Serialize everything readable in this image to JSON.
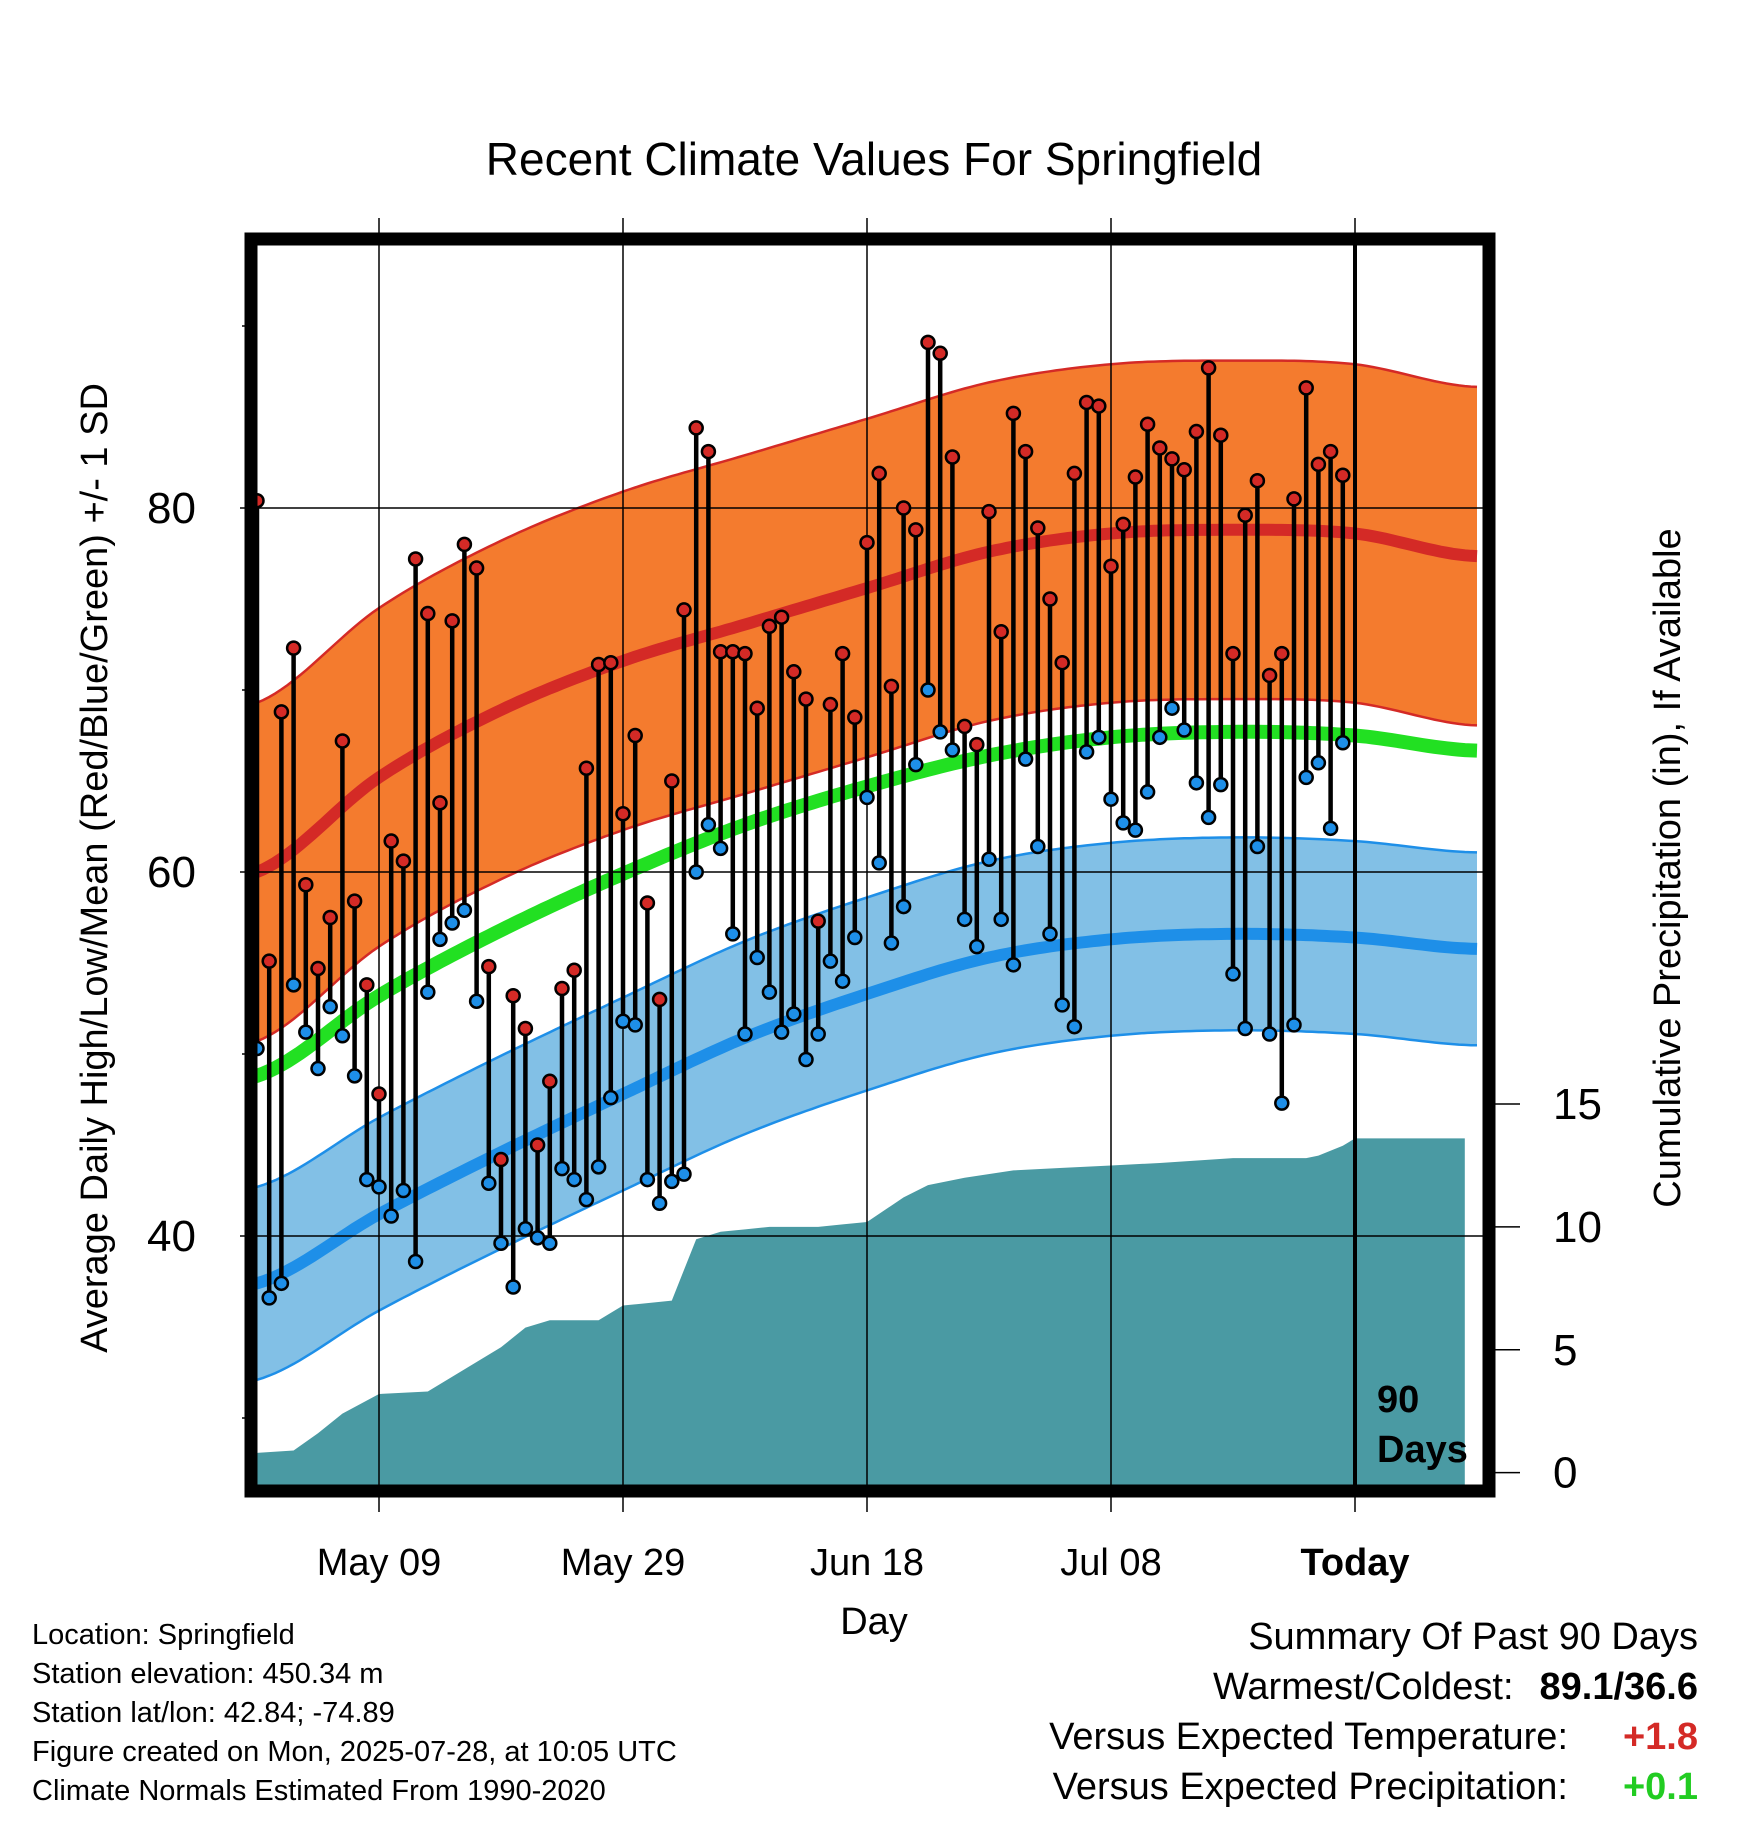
{
  "colors": {
    "high_band": "#f47b2e",
    "high_band_edge": "#d42a26",
    "high_mean": "#d42a26",
    "low_band": "#82c0e6",
    "low_band_edge": "#1e8fe8",
    "low_mean": "#1e8fe8",
    "mean_line": "#22e022",
    "precip_fill": "#4a9aa3",
    "high_dot": "#d42a26",
    "low_dot": "#1e8fe8",
    "departure_temp": "#d42a26",
    "departure_precip": "#22cc22"
  },
  "chart_data": {
    "type": "line",
    "title": "Recent Climate Values For Springfield",
    "xlabel": "Day",
    "ylabel": "Average Daily High/Low/Mean (Red/Blue/Green) +/- 1 SD",
    "y2label": "Cumulative Precipitation (in), If Available",
    "x_ticks": [
      "May 09",
      "May 29",
      "Jun 18",
      "Jul 08",
      "Today"
    ],
    "x_tick_days": [
      10,
      30,
      50,
      70,
      90
    ],
    "xlim": [
      -0.2,
      99.2
    ],
    "ylim": [
      27.5,
      95.5
    ],
    "y_ticks": [
      40,
      60,
      80
    ],
    "y_minor_ticks": [
      30,
      50,
      70,
      90
    ],
    "y2_ticks": [
      0,
      5,
      10,
      15
    ],
    "y2_scale": {
      "zero_at_temp": 27,
      "units_per_inch": 1.35
    },
    "today_marker": {
      "day": 90,
      "label_line1": "90",
      "label_line2": "Days"
    },
    "grid": true,
    "normals": {
      "x": [
        0,
        10,
        20,
        30,
        40,
        50,
        60,
        70,
        80,
        90,
        99
      ],
      "high_mean": [
        60,
        65.2,
        68.9,
        71.6,
        73.6,
        75.6,
        77.6,
        78.6,
        78.8,
        78.6,
        77.4
      ],
      "high_sd": 9.3,
      "low_mean": [
        37.4,
        41.2,
        44.6,
        47.8,
        50.9,
        53.3,
        55.3,
        56.3,
        56.6,
        56.4,
        55.8
      ],
      "low_sd": 5.3,
      "mean_line": [
        48.8,
        53.2,
        56.8,
        59.9,
        62.6,
        64.7,
        66.4,
        67.4,
        67.7,
        67.5,
        66.7
      ]
    },
    "series": [
      {
        "name": "High",
        "values": [
          80.4,
          55.1,
          68.8,
          72.3,
          59.3,
          54.7,
          57.5,
          67.2,
          58.4,
          53.8,
          47.8,
          61.7,
          60.6,
          77.2,
          74.2,
          63.8,
          73.8,
          78,
          76.7,
          54.8,
          44.2,
          53.2,
          51.4,
          45,
          48.5,
          53.6,
          54.6,
          65.7,
          71.4,
          71.5,
          63.2,
          67.5,
          58.3,
          53,
          65,
          74.4,
          84.4,
          83.1,
          72.1,
          72.1,
          72,
          69,
          73.5,
          74,
          71,
          69.5,
          57.3,
          69.2,
          72,
          68.5,
          78.1,
          81.9,
          70.2,
          80,
          78.8,
          89.1,
          88.5,
          82.8,
          68,
          67,
          79.8,
          73.2,
          85.2,
          83.1,
          78.9,
          75,
          71.5,
          81.9,
          85.8,
          85.6,
          76.8,
          79.1,
          81.7,
          84.6,
          83.3,
          82.7,
          82.1,
          84.2,
          87.7,
          84,
          72,
          79.6,
          81.5,
          70.8,
          72,
          80.5,
          86.6,
          82.4,
          83.1,
          81.8
        ]
      },
      {
        "name": "Low",
        "values": [
          50.3,
          36.6,
          37.4,
          53.8,
          51.2,
          49.2,
          52.6,
          51,
          48.8,
          43.1,
          42.7,
          41.1,
          42.5,
          38.6,
          53.4,
          56.3,
          57.2,
          57.9,
          52.9,
          42.9,
          39.6,
          37.2,
          40.4,
          39.9,
          39.6,
          43.7,
          43.1,
          42,
          43.8,
          47.6,
          51.8,
          51.6,
          43.1,
          41.8,
          43,
          43.4,
          60,
          62.6,
          61.3,
          56.6,
          51.1,
          55.3,
          53.4,
          51.2,
          52.2,
          49.7,
          51.1,
          55.1,
          54,
          56.4,
          64.1,
          60.5,
          56.1,
          58.1,
          65.9,
          70,
          67.7,
          66.7,
          57.4,
          55.9,
          60.7,
          57.4,
          54.9,
          66.2,
          61.4,
          56.6,
          52.7,
          51.5,
          66.6,
          67.4,
          64,
          62.7,
          62.3,
          64.4,
          67.4,
          69,
          67.8,
          64.9,
          63,
          64.8,
          54.4,
          51.4,
          61.4,
          51.1,
          47.3,
          51.6,
          65.2,
          66,
          62.4,
          67.1
        ]
      },
      {
        "name": "Cumulative Precipitation",
        "x": [
          0,
          3,
          5,
          7,
          10,
          14,
          16,
          18,
          20,
          22,
          24,
          26,
          28,
          30,
          32,
          34,
          36,
          38,
          40,
          42,
          44,
          46,
          48,
          50,
          53,
          55,
          58,
          62,
          66,
          70,
          74,
          80,
          84,
          86,
          87,
          89,
          90,
          91,
          99
        ],
        "values": [
          0.8,
          0.9,
          1.6,
          2.4,
          3.2,
          3.3,
          3.9,
          4.5,
          5.1,
          5.9,
          6.2,
          6.2,
          6.2,
          6.8,
          6.9,
          7,
          9.5,
          9.8,
          9.9,
          10,
          10,
          10,
          10.1,
          10.2,
          11.2,
          11.7,
          12,
          12.3,
          12.4,
          12.5,
          12.6,
          12.8,
          12.8,
          12.8,
          12.9,
          13.3,
          13.6,
          13.6,
          13.6
        ]
      }
    ]
  },
  "footer": {
    "location": "Location: Springfield",
    "elevation": "Station elevation: 450.34 m",
    "latlon": "Station lat/lon: 42.84; -74.89",
    "created": "Figure created on Mon, 2025-07-28, at 10:05 UTC",
    "normals_note": "Climate Normals Estimated From 1990-2020"
  },
  "summary": {
    "heading": "Summary Of Past 90 Days",
    "warm_cold_label": "Warmest/Coldest:",
    "warm_cold_value": "89.1/36.6",
    "temp_label": "Versus Expected Temperature:",
    "temp_value": "+1.8",
    "precip_label": "Versus Expected Precipitation:",
    "precip_value": "+0.1"
  }
}
